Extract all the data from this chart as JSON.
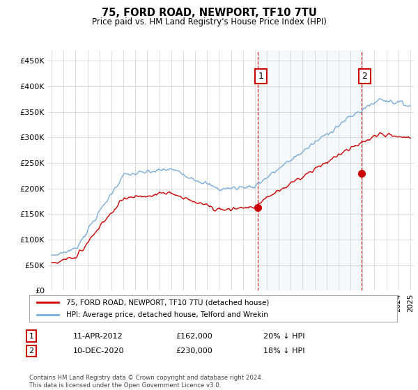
{
  "title": "75, FORD ROAD, NEWPORT, TF10 7TU",
  "subtitle": "Price paid vs. HM Land Registry's House Price Index (HPI)",
  "ylim": [
    0,
    470000
  ],
  "yticks": [
    0,
    50000,
    100000,
    150000,
    200000,
    250000,
    300000,
    350000,
    400000,
    450000
  ],
  "ytick_labels": [
    "£0",
    "£50K",
    "£100K",
    "£150K",
    "£200K",
    "£250K",
    "£300K",
    "£350K",
    "£400K",
    "£450K"
  ],
  "hpi_color": "#7aaddb",
  "price_color": "#cc0000",
  "plot_bg": "#ffffff",
  "shade_color": "#dce8f5",
  "marker1_x": 2012.27,
  "marker1_y": 162000,
  "marker1_label": "1",
  "marker1_date": "11-APR-2012",
  "marker1_price": "£162,000",
  "marker1_note": "20% ↓ HPI",
  "marker2_x": 2020.94,
  "marker2_y": 230000,
  "marker2_label": "2",
  "marker2_date": "10-DEC-2020",
  "marker2_price": "£230,000",
  "marker2_note": "18% ↓ HPI",
  "legend_label1": "75, FORD ROAD, NEWPORT, TF10 7TU (detached house)",
  "legend_label2": "HPI: Average price, detached house, Telford and Wrekin",
  "footer": "Contains HM Land Registry data © Crown copyright and database right 2024.\nThis data is licensed under the Open Government Licence v3.0.",
  "xlim_left": 1994.7,
  "xlim_right": 2025.3
}
